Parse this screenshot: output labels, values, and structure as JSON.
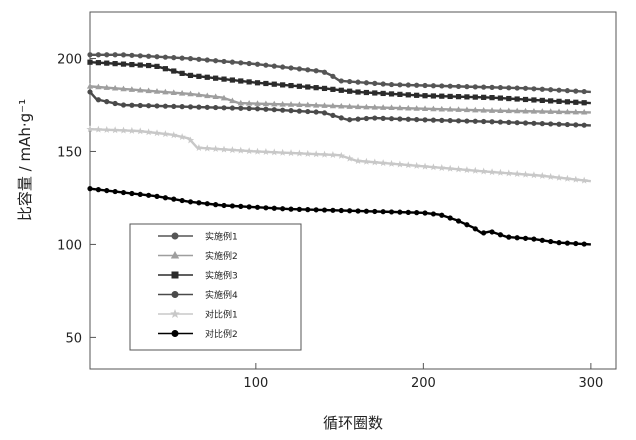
{
  "chart_data": {
    "type": "line",
    "xlabel": "循环圈数",
    "ylabel": "比容量 / mAh·g⁻¹",
    "xlim": [
      1,
      315
    ],
    "ylim": [
      33,
      225
    ],
    "xticks": [
      100,
      200,
      300
    ],
    "yticks": [
      50,
      100,
      150,
      200
    ],
    "grid": false,
    "legend": "bottom-left",
    "series": [
      {
        "name": "实施例1",
        "color": "#555555",
        "marker": "circle",
        "points": [
          [
            1,
            202
          ],
          [
            20,
            202
          ],
          [
            60,
            200
          ],
          [
            100,
            197
          ],
          [
            140,
            193
          ],
          [
            145,
            191
          ],
          [
            150,
            188
          ],
          [
            180,
            186
          ],
          [
            220,
            185
          ],
          [
            260,
            184
          ],
          [
            300,
            182
          ]
        ]
      },
      {
        "name": "实施例2",
        "color": "#9e9e9e",
        "marker": "triangle",
        "points": [
          [
            1,
            185
          ],
          [
            30,
            183
          ],
          [
            60,
            181
          ],
          [
            80,
            179
          ],
          [
            90,
            176
          ],
          [
            130,
            175
          ],
          [
            160,
            174
          ],
          [
            200,
            173
          ],
          [
            240,
            172
          ],
          [
            300,
            171
          ]
        ]
      },
      {
        "name": "实施例3",
        "color": "#2b2b2b",
        "marker": "square",
        "points": [
          [
            1,
            198
          ],
          [
            40,
            196
          ],
          [
            60,
            191
          ],
          [
            80,
            189
          ],
          [
            100,
            187
          ],
          [
            140,
            184
          ],
          [
            160,
            182
          ],
          [
            200,
            180
          ],
          [
            240,
            179
          ],
          [
            260,
            178
          ],
          [
            300,
            176
          ]
        ]
      },
      {
        "name": "实施例4",
        "color": "#4a4a4a",
        "marker": "circle",
        "points": [
          [
            1,
            182
          ],
          [
            5,
            178
          ],
          [
            20,
            175
          ],
          [
            60,
            174
          ],
          [
            100,
            173
          ],
          [
            140,
            171
          ],
          [
            155,
            167
          ],
          [
            170,
            168
          ],
          [
            200,
            167
          ],
          [
            240,
            166
          ],
          [
            270,
            165
          ],
          [
            300,
            164
          ]
        ]
      },
      {
        "name": "对比例1",
        "color": "#c8c8c8",
        "marker": "star",
        "points": [
          [
            1,
            162
          ],
          [
            30,
            161
          ],
          [
            50,
            159
          ],
          [
            60,
            157
          ],
          [
            65,
            152
          ],
          [
            100,
            150
          ],
          [
            150,
            148
          ],
          [
            160,
            145
          ],
          [
            200,
            142
          ],
          [
            240,
            139
          ],
          [
            270,
            137
          ],
          [
            300,
            134
          ]
        ]
      },
      {
        "name": "对比例2",
        "color": "#000000",
        "marker": "circle",
        "points": [
          [
            1,
            130
          ],
          [
            20,
            128
          ],
          [
            40,
            126
          ],
          [
            60,
            123
          ],
          [
            80,
            121
          ],
          [
            100,
            120
          ],
          [
            120,
            119
          ],
          [
            160,
            118
          ],
          [
            200,
            117
          ],
          [
            210,
            116
          ],
          [
            220,
            113
          ],
          [
            230,
            109
          ],
          [
            235,
            106
          ],
          [
            240,
            107
          ],
          [
            250,
            104
          ],
          [
            265,
            103
          ],
          [
            280,
            101
          ],
          [
            300,
            100
          ]
        ]
      }
    ]
  }
}
